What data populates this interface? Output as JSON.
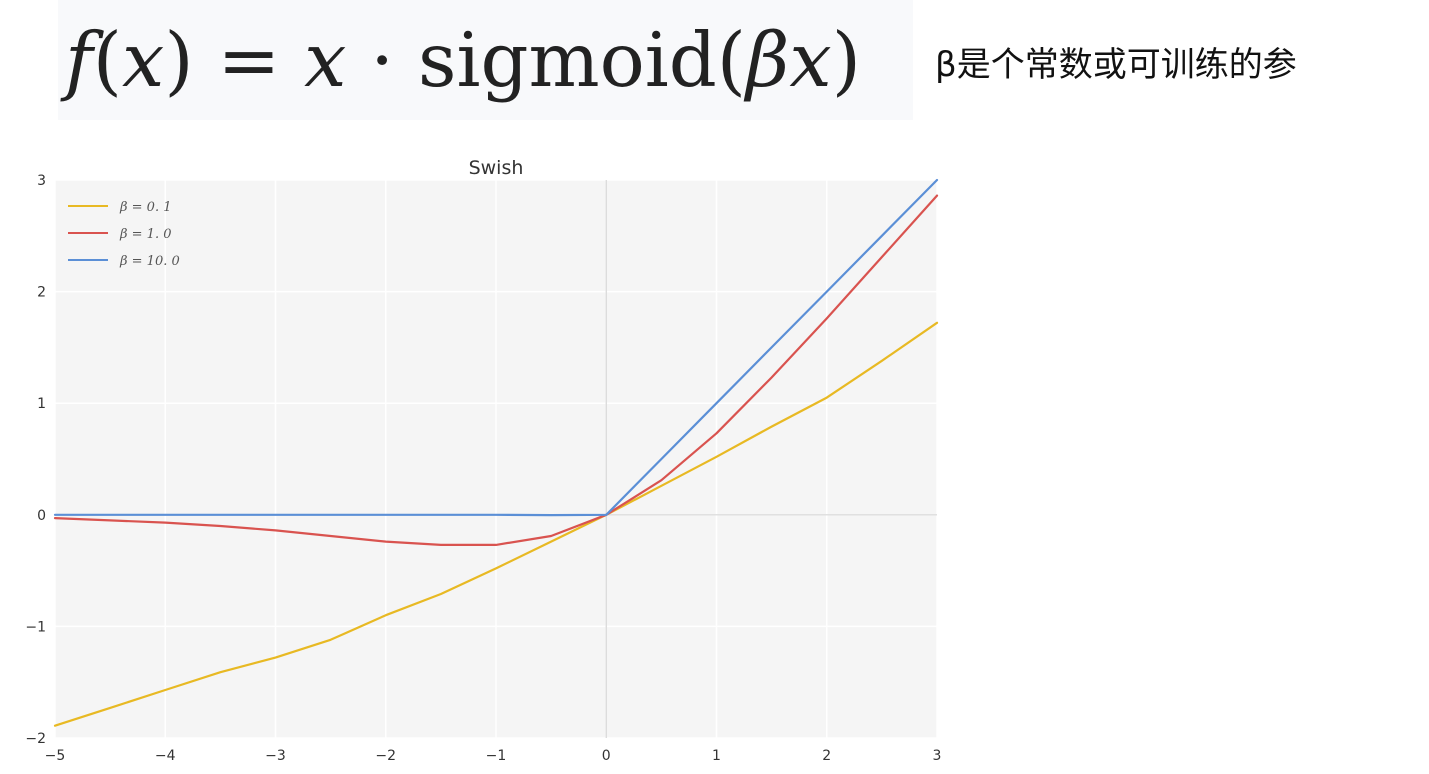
{
  "formula": {
    "f": "f",
    "lp1": "(",
    "x1": "x",
    "rp1": ")",
    "eq": "=",
    "x2": "x",
    "dot": "·",
    "sigmoid": "sigmoid",
    "lp2": "(",
    "beta": "β",
    "x3": "x",
    "rp2": ")"
  },
  "note": "β是个常数或可训练的参",
  "colors": {
    "plot_background": "#f5f5f5",
    "grid": "#ffffff",
    "axis_line": "#d6d6d6",
    "beta_0_1": "#e8b923",
    "beta_1_0": "#d9534f",
    "beta_10_0": "#5b8fd6"
  },
  "chart_data": {
    "type": "line",
    "title": "Swish",
    "xlabel": "",
    "ylabel": "",
    "xlim": [
      -5,
      3
    ],
    "ylim": [
      -2,
      3
    ],
    "grid": true,
    "legend_position": "top-left",
    "x_ticks": [
      -5,
      -4,
      -3,
      -2,
      -1,
      0,
      1,
      2,
      3
    ],
    "y_ticks": [
      -2,
      -1,
      0,
      1,
      2,
      3
    ],
    "x_tick_labels": [
      "−5",
      "−4",
      "−3",
      "−2",
      "−1",
      "0",
      "1",
      "2",
      "3"
    ],
    "y_tick_labels": [
      "−2",
      "−1",
      "0",
      "1",
      "2",
      "3"
    ],
    "x": [
      -5,
      -4.5,
      -4,
      -3.5,
      -3,
      -2.5,
      -2,
      -1.5,
      -1,
      -0.5,
      0,
      0.5,
      1,
      1.5,
      2,
      2.5,
      3
    ],
    "series": [
      {
        "name": "β = 0. 1",
        "values": [
          -1.89,
          -1.73,
          -1.57,
          -1.41,
          -1.28,
          -1.12,
          -0.9,
          -0.71,
          -0.48,
          -0.24,
          0.0,
          0.26,
          0.52,
          0.79,
          1.05,
          1.38,
          1.72
        ]
      },
      {
        "name": "β = 1. 0",
        "values": [
          -0.03,
          -0.05,
          -0.07,
          -0.1,
          -0.14,
          -0.19,
          -0.24,
          -0.27,
          -0.27,
          -0.19,
          0.0,
          0.31,
          0.73,
          1.23,
          1.76,
          2.31,
          2.86
        ]
      },
      {
        "name": "β = 10. 0",
        "values": [
          0.0,
          0.0,
          0.0,
          0.0,
          0.0,
          0.0,
          0.0,
          0.0,
          0.0,
          -0.003,
          0.0,
          0.5,
          1.0,
          1.5,
          2.0,
          2.5,
          3.0
        ]
      }
    ]
  }
}
